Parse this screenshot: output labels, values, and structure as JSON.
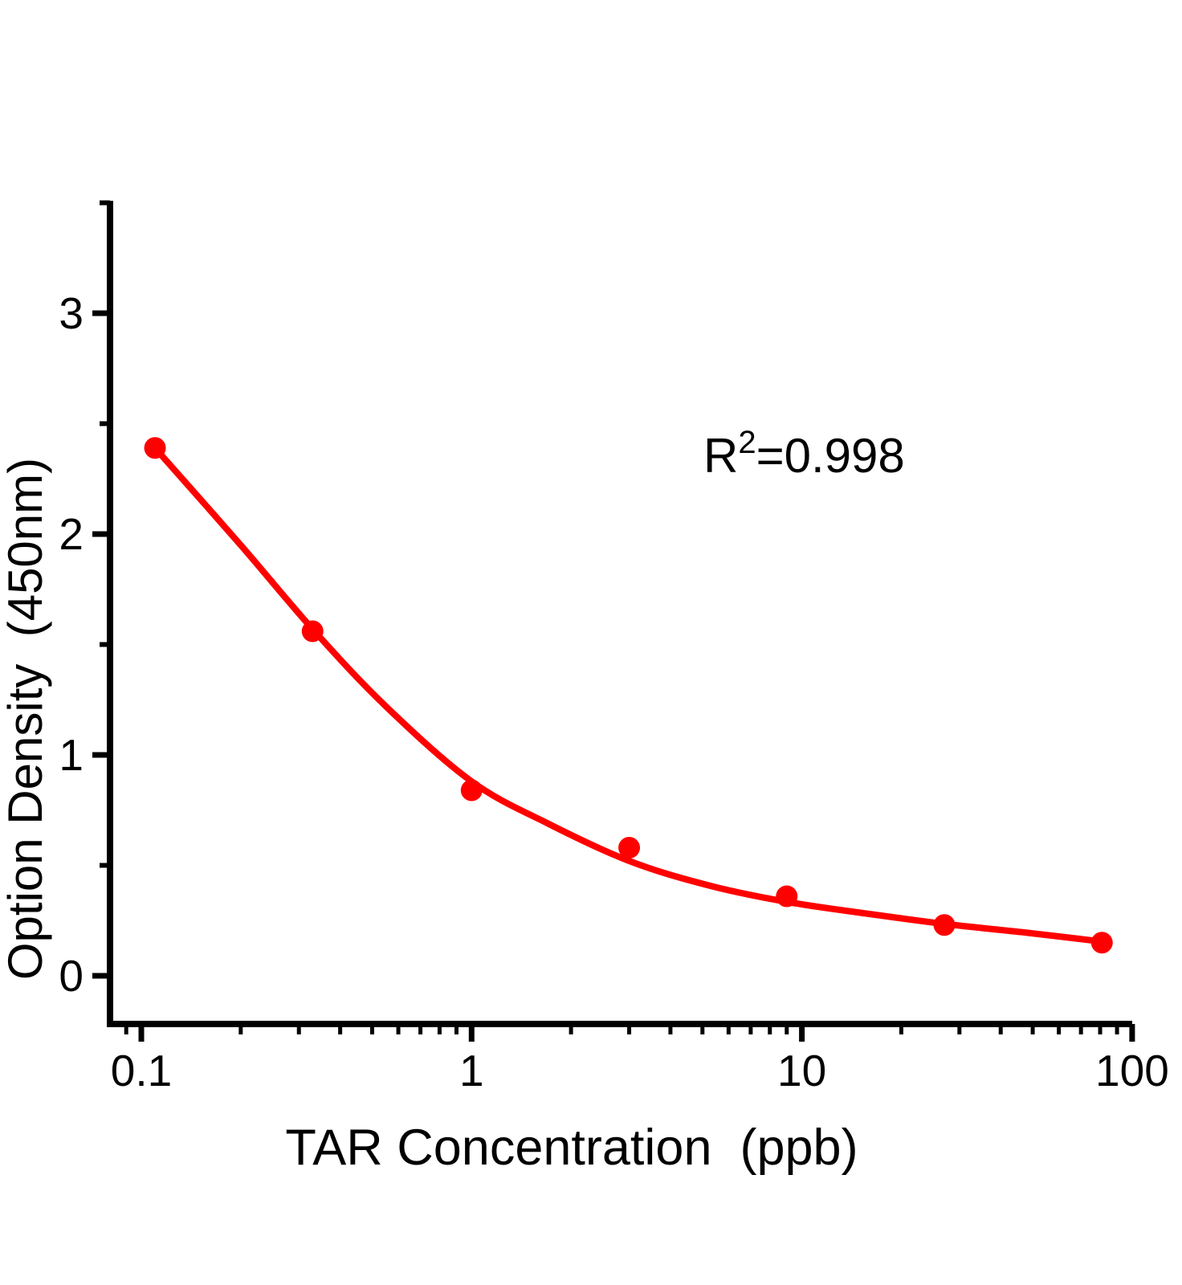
{
  "chart_data": {
    "type": "scatter",
    "title": "",
    "xlabel": "TAR Concentration  (ppb)",
    "ylabel": "Option Density  (450nm)",
    "x_scale": "log",
    "y_scale": "linear",
    "xlim": [
      0.08,
      100
    ],
    "ylim": [
      -0.22,
      3.55
    ],
    "grid": false,
    "legend": "none",
    "axis_color": "#000000",
    "series": [
      {
        "name": "TAR standard curve points",
        "marker": "circle",
        "marker_color": "#ff0000",
        "line_color": "#ff0000",
        "x": [
          0.11,
          0.33,
          1,
          3,
          9,
          27,
          81
        ],
        "y": [
          2.39,
          1.56,
          0.84,
          0.58,
          0.36,
          0.23,
          0.15
        ]
      }
    ],
    "fit_curve": {
      "x": [
        0.11,
        0.2,
        0.33,
        0.55,
        1.0,
        1.7,
        3.0,
        5.2,
        9,
        16,
        27,
        48,
        81
      ],
      "y": [
        2.39,
        1.95,
        1.57,
        1.22,
        0.88,
        0.69,
        0.52,
        0.41,
        0.335,
        0.28,
        0.235,
        0.195,
        0.155
      ]
    },
    "x_ticks": {
      "major": [
        {
          "value": 0.1,
          "label": "0.1"
        },
        {
          "value": 1,
          "label": "1"
        },
        {
          "value": 10,
          "label": "10"
        },
        {
          "value": 100,
          "label": "100"
        }
      ],
      "minor": [
        0.09,
        0.2,
        0.3,
        0.4,
        0.5,
        0.6,
        0.7,
        0.8,
        0.9,
        2,
        3,
        4,
        5,
        6,
        7,
        8,
        9,
        20,
        30,
        40,
        50,
        60,
        70,
        80,
        90
      ]
    },
    "y_ticks": {
      "major": [
        {
          "value": 0,
          "label": "0"
        },
        {
          "value": 1,
          "label": "1"
        },
        {
          "value": 2,
          "label": "2"
        },
        {
          "value": 3,
          "label": "3"
        }
      ],
      "minor": [
        0.5,
        1.5,
        2.5,
        3.5
      ]
    },
    "annotation": {
      "text": "R²=0.998",
      "base": "R",
      "sup": "2",
      "rest": "=0.998"
    }
  }
}
